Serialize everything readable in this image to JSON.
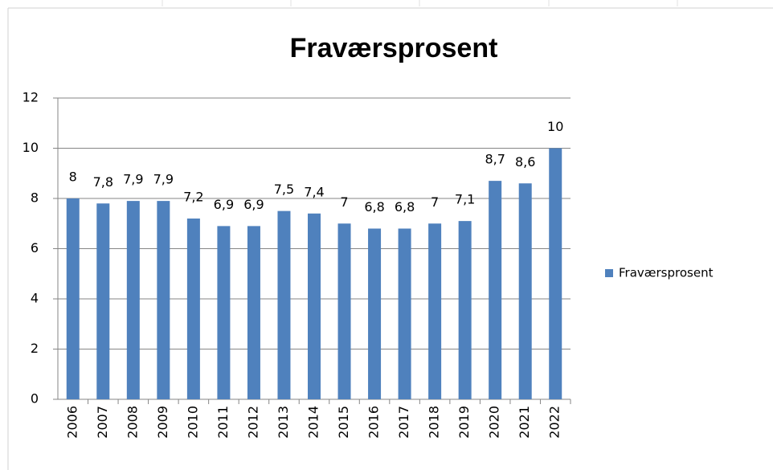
{
  "chart_data": {
    "type": "bar",
    "title": "Fraværsprosent",
    "categories": [
      "2006",
      "2007",
      "2008",
      "2009",
      "2010",
      "2011",
      "2012",
      "2013",
      "2014",
      "2015",
      "2016",
      "2017",
      "2018",
      "2019",
      "2020",
      "2021",
      "2022"
    ],
    "series": [
      {
        "name": "Fraværsprosent",
        "color": "#4f81bd",
        "values": [
          8,
          7.8,
          7.9,
          7.9,
          7.2,
          6.9,
          6.9,
          7.5,
          7.4,
          7,
          6.8,
          6.8,
          7,
          7.1,
          8.7,
          8.6,
          10
        ],
        "value_labels": [
          "8",
          "7,8",
          "7,9",
          "7,9",
          "7,2",
          "6,9",
          "6,9",
          "7,5",
          "7,4",
          "7",
          "6,8",
          "6,8",
          "7",
          "7,1",
          "8,7",
          "8,6",
          "10"
        ]
      }
    ],
    "ylim": [
      0,
      12
    ],
    "yticks": [
      0,
      2,
      4,
      6,
      8,
      10,
      12
    ],
    "grid": true,
    "legend": "right"
  }
}
